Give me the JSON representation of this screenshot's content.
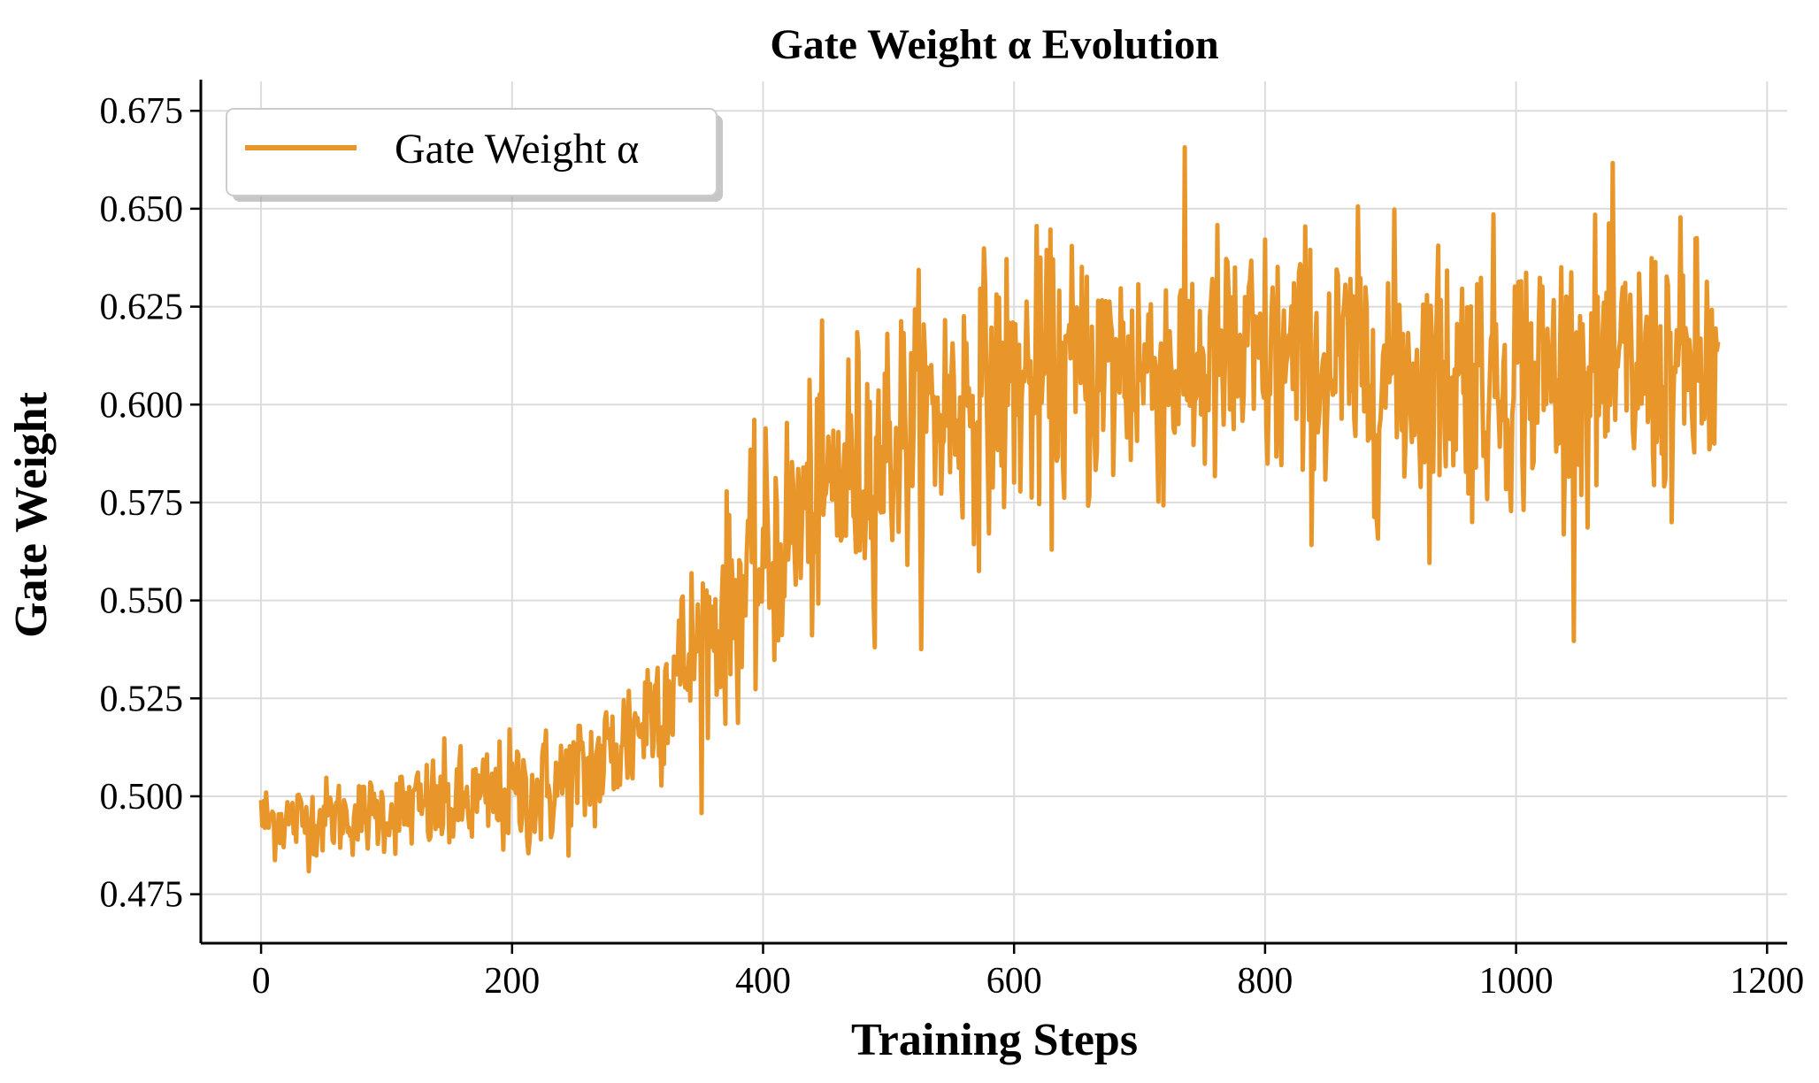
{
  "chart_data": {
    "type": "line",
    "title": "Gate Weight α Evolution",
    "xlabel": "Training Steps",
    "ylabel": "Gate Weight",
    "xlim": [
      -48,
      1216
    ],
    "ylim": [
      0.4625,
      0.6825
    ],
    "xticks": [
      0,
      200,
      400,
      600,
      800,
      1000,
      1200
    ],
    "yticks": [
      0.475,
      0.5,
      0.525,
      0.55,
      0.575,
      0.6,
      0.625,
      0.65,
      0.675
    ],
    "ytick_labels": [
      "0.475",
      "0.500",
      "0.525",
      "0.550",
      "0.575",
      "0.600",
      "0.625",
      "0.650",
      "0.675"
    ],
    "xtick_labels": [
      "0",
      "200",
      "400",
      "600",
      "800",
      "1000",
      "1200"
    ],
    "grid": true,
    "legend": {
      "position": "top-left",
      "entries": [
        "Gate Weight α"
      ]
    },
    "series": [
      {
        "name": "Gate Weight α",
        "color": "#E8962A",
        "x": [
          0,
          20,
          40,
          60,
          80,
          100,
          120,
          140,
          160,
          180,
          200,
          220,
          240,
          260,
          280,
          300,
          320,
          340,
          360,
          380,
          400,
          420,
          440,
          460,
          480,
          500,
          520,
          540,
          560,
          580,
          600,
          620,
          640,
          660,
          680,
          700,
          720,
          740,
          760,
          780,
          800,
          820,
          840,
          860,
          880,
          900,
          920,
          940,
          960,
          980,
          1000,
          1020,
          1040,
          1060,
          1080,
          1100,
          1120,
          1140,
          1160
        ],
        "trend": [
          0.494,
          0.494,
          0.494,
          0.495,
          0.495,
          0.496,
          0.497,
          0.497,
          0.498,
          0.499,
          0.5,
          0.501,
          0.503,
          0.506,
          0.511,
          0.518,
          0.527,
          0.535,
          0.543,
          0.551,
          0.559,
          0.567,
          0.574,
          0.58,
          0.585,
          0.59,
          0.594,
          0.598,
          0.601,
          0.603,
          0.605,
          0.606,
          0.607,
          0.608,
          0.609,
          0.61,
          0.61,
          0.61,
          0.61,
          0.61,
          0.61,
          0.61,
          0.609,
          0.609,
          0.609,
          0.609,
          0.608,
          0.608,
          0.608,
          0.608,
          0.608,
          0.608,
          0.608,
          0.608,
          0.608,
          0.608,
          0.608,
          0.608,
          0.608
        ],
        "noise": [
          0.005,
          0.005,
          0.005,
          0.005,
          0.005,
          0.005,
          0.006,
          0.007,
          0.007,
          0.007,
          0.008,
          0.008,
          0.008,
          0.009,
          0.009,
          0.01,
          0.011,
          0.012,
          0.013,
          0.014,
          0.015,
          0.016,
          0.016,
          0.017,
          0.017,
          0.017,
          0.017,
          0.017,
          0.017,
          0.017,
          0.017,
          0.017,
          0.017,
          0.017,
          0.017,
          0.017,
          0.017,
          0.017,
          0.017,
          0.017,
          0.017,
          0.017,
          0.017,
          0.017,
          0.017,
          0.017,
          0.017,
          0.017,
          0.017,
          0.017,
          0.017,
          0.017,
          0.017,
          0.017,
          0.017,
          0.017,
          0.017,
          0.017,
          0.017
        ],
        "n_points": 1162,
        "first_value": 0.499,
        "last_value": 0.616,
        "min": 0.473,
        "max": 0.671
      }
    ]
  }
}
